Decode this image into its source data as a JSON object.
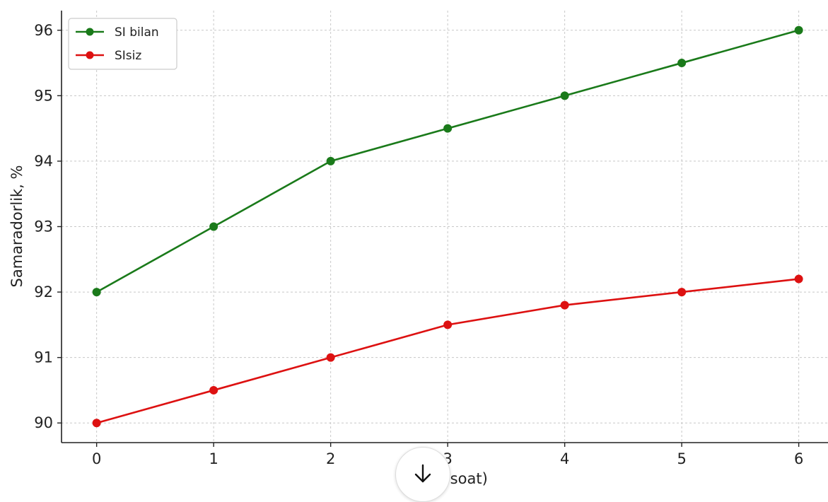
{
  "chart_data": {
    "type": "line",
    "x": [
      0,
      1,
      2,
      3,
      4,
      5,
      6
    ],
    "series": [
      {
        "name": "SI bilan",
        "color": "#1a7a1a",
        "values": [
          92,
          93,
          94,
          94.5,
          95,
          95.5,
          96
        ]
      },
      {
        "name": "SIsiz",
        "color": "#dd1111",
        "values": [
          90,
          90.5,
          91,
          91.5,
          91.8,
          92,
          92.2
        ]
      }
    ],
    "xticks": [
      "0",
      "1",
      "2",
      "3",
      "4",
      "5",
      "6"
    ],
    "yticks": [
      "90",
      "91",
      "92",
      "93",
      "94",
      "95",
      "96"
    ],
    "xlabel": ",soat)",
    "ylabel": "Samaradorlik, %",
    "ylim": [
      89.7,
      96.3
    ],
    "xlim": [
      -0.3,
      6.25
    ],
    "grid": true,
    "legend_position": "top-left"
  },
  "ui": {
    "scroll_button_icon": "arrow-down-icon"
  }
}
